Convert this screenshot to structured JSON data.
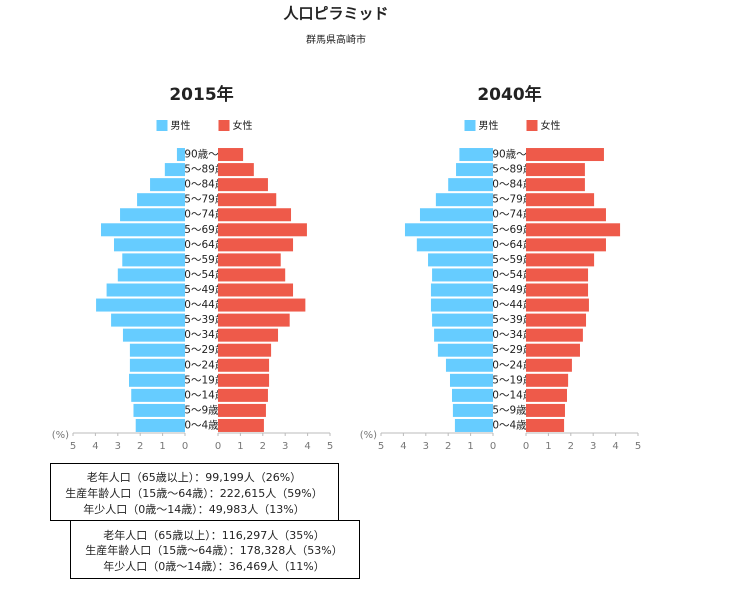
{
  "header": {
    "title": "人口ピラミッド",
    "subtitle": "群馬県高崎市"
  },
  "chart_data": [
    {
      "type": "pyramid",
      "title": "2015年",
      "categories": [
        "0〜4歳",
        "5〜9歳",
        "10〜14歳",
        "15〜19歳",
        "20〜24歳",
        "25〜29歳",
        "30〜34歳",
        "35〜39歳",
        "40〜44歳",
        "45〜49歳",
        "50〜54歳",
        "55〜59歳",
        "60〜64歳",
        "65〜69歳",
        "70〜74歳",
        "75〜79歳",
        "80〜84歳",
        "85〜89歳",
        "90歳〜"
      ],
      "series": [
        {
          "name": "男性",
          "color": "#66ccff",
          "values": [
            2.2,
            2.3,
            2.4,
            2.5,
            2.46,
            2.46,
            2.77,
            3.3,
            3.97,
            3.5,
            3.0,
            2.8,
            3.17,
            3.75,
            2.9,
            2.14,
            1.56,
            0.9,
            0.36
          ]
        },
        {
          "name": "女性",
          "color": "#ee5a4a",
          "values": [
            2.05,
            2.14,
            2.23,
            2.28,
            2.28,
            2.37,
            2.68,
            3.2,
            3.9,
            3.35,
            3.0,
            2.8,
            3.35,
            3.97,
            3.26,
            2.6,
            2.23,
            1.6,
            1.12
          ]
        }
      ],
      "xlim": [
        0,
        5
      ],
      "xticks": [
        0,
        1,
        2,
        3,
        4,
        5
      ],
      "x_label": "(%)"
    },
    {
      "type": "pyramid",
      "title": "2040年",
      "categories": [
        "0〜4歳",
        "5〜9歳",
        "10〜14歳",
        "15〜19歳",
        "20〜24歳",
        "25〜29歳",
        "30〜34歳",
        "35〜39歳",
        "40〜44歳",
        "45〜49歳",
        "50〜54歳",
        "55〜59歳",
        "60〜64歳",
        "65〜69歳",
        "70〜74歳",
        "75〜79歳",
        "80〜84歳",
        "85〜89歳",
        "90歳〜"
      ],
      "series": [
        {
          "name": "男性",
          "color": "#66ccff",
          "values": [
            1.7,
            1.79,
            1.83,
            1.92,
            2.1,
            2.46,
            2.63,
            2.72,
            2.77,
            2.77,
            2.72,
            2.9,
            3.4,
            3.93,
            3.26,
            2.55,
            2.0,
            1.65,
            1.5
          ]
        },
        {
          "name": "女性",
          "color": "#ee5a4a",
          "values": [
            1.7,
            1.74,
            1.83,
            1.88,
            2.05,
            2.41,
            2.54,
            2.68,
            2.81,
            2.77,
            2.77,
            3.04,
            3.57,
            4.2,
            3.57,
            3.04,
            2.63,
            2.63,
            3.48
          ]
        }
      ],
      "xlim": [
        0,
        5
      ],
      "xticks": [
        0,
        1,
        2,
        3,
        4,
        5
      ],
      "x_label": "(%)"
    }
  ],
  "summaries": [
    [
      "老年人口（65歳以上）：99,199人（26%）",
      "生産年齢人口（15歳〜64歳）：222,615人（59%）",
      "年少人口（0歳〜14歳）：49,983人（13%）"
    ],
    [
      "老年人口（65歳以上）：116,297人（35%）",
      "生産年齢人口（15歳〜64歳）：178,328人（53%）",
      "年少人口（0歳〜14歳）：36,469人（11%）"
    ]
  ]
}
